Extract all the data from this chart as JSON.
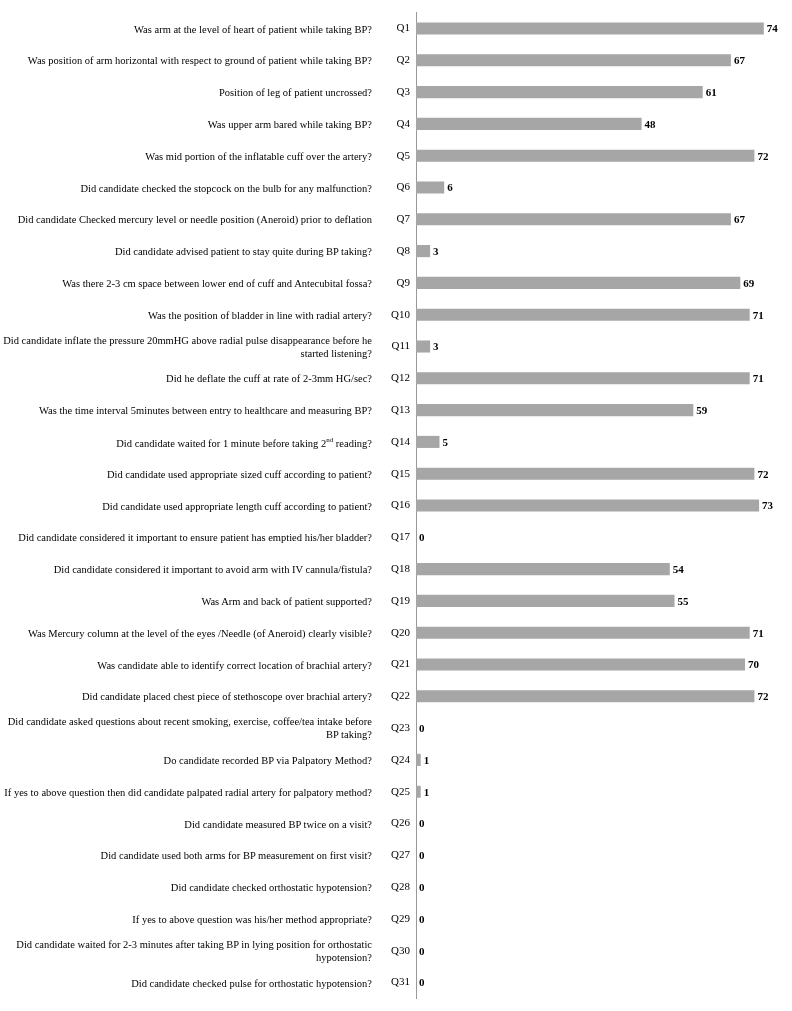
{
  "chart_data": {
    "type": "bar",
    "orientation": "horizontal",
    "categories": [
      "Q1",
      "Q2",
      "Q3",
      "Q4",
      "Q5",
      "Q6",
      "Q7",
      "Q8",
      "Q9",
      "Q10",
      "Q11",
      "Q12",
      "Q13",
      "Q14",
      "Q15",
      "Q16",
      "Q17",
      "Q18",
      "Q19",
      "Q20",
      "Q21",
      "Q22",
      "Q23",
      "Q24",
      "Q25",
      "Q26",
      "Q27",
      "Q28",
      "Q29",
      "Q30",
      "Q31"
    ],
    "values": [
      74,
      67,
      61,
      48,
      72,
      6,
      67,
      3,
      69,
      71,
      3,
      71,
      59,
      5,
      72,
      73,
      0,
      54,
      55,
      71,
      70,
      72,
      0,
      1,
      1,
      0,
      0,
      0,
      0,
      0,
      0
    ],
    "color": "#a6a6a6",
    "data_labels": true,
    "grid": false,
    "tick_labels": "y",
    "legend": false,
    "annotations": [
      "Was arm at the level of heart of patient while taking BP?",
      "Was position of arm horizontal with respect to ground of patient while taking BP?",
      "Position of leg of patient uncrossed?",
      "Was upper arm bared while taking BP?",
      "Was mid portion of the inflatable cuff over the artery?",
      "Did candidate checked the stopcock on the bulb for any malfunction?",
      "Did candidate Checked mercury level or needle position (Aneroid) prior to deflation",
      "Did candidate advised patient to stay quite during BP taking?",
      "Was there 2-3 cm space between lower end of cuff and Antecubital fossa?",
      "Was the position of bladder in line with radial artery?",
      "Did candidate inflate the pressure 20mmHG above radial pulse disappearance before he started listening?",
      "Did he deflate the cuff at rate of 2-3mm HG/sec?",
      "Was the time interval 5minutes between entry to healthcare and measuring BP?",
      "Did candidate waited for 1 minute before taking 2$^{nd}$ reading?",
      "Did candidate used appropriate sized cuff according to patient?",
      "Did candidate used appropriate length cuff according to patient?",
      "Did candidate considered it important to ensure patient has emptied his/her bladder?",
      "Did candidate considered it important to avoid arm with IV cannula/fistula?",
      "Was Arm and back of patient supported?",
      "Was Mercury column at the level of the eyes /Needle (of Aneroid) clearly visible?",
      "Was candidate able to identify correct location of brachial artery?",
      "Did candidate placed chest piece of stethoscope over brachial artery?",
      "Did candidate asked questions about recent smoking, exercise, coffee/tea intake before BP taking?",
      "Do candidate recorded BP via Palpatory Method?",
      "If yes to above question then did candidate palpated radial artery for palpatory method?",
      "Did candidate measured BP twice on a visit?",
      "Did candidate used both arms for BP measurement on first visit?",
      "Did candidate checked orthostatic hypotension?",
      "If yes to above question was his/her method appropriate?",
      "Did candidate waited for 2-3 minutes after taking BP in lying position for orthostatic hypotension?",
      "Did candidate checked pulse for orthostatic hypotension?"
    ]
  }
}
